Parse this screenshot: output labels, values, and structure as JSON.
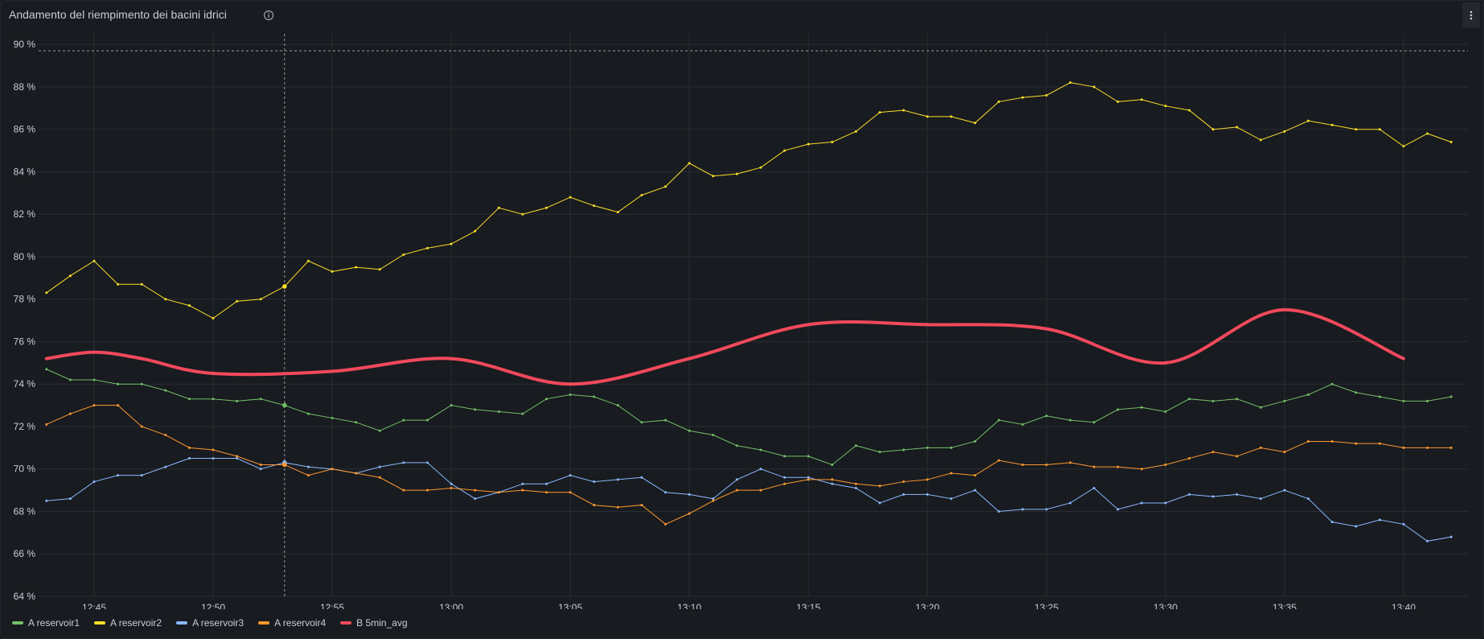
{
  "panel": {
    "title": "Andamento del riempimento dei bacini idrici",
    "info_icon": "info-circle-icon",
    "menu_icon": "kebab-menu-icon"
  },
  "chart_data": {
    "type": "line",
    "grid": true,
    "legend_placement": "bottom-left",
    "ylim": [
      64,
      90.5
    ],
    "y_ticks": [
      "64 %",
      "66 %",
      "68 %",
      "70 %",
      "72 %",
      "74 %",
      "76 %",
      "78 %",
      "80 %",
      "82 %",
      "84 %",
      "86 %",
      "88 %",
      "90 %"
    ],
    "y_tick_values": [
      64,
      66,
      68,
      70,
      72,
      74,
      76,
      78,
      80,
      82,
      84,
      86,
      88,
      90
    ],
    "x_ticks": [
      "12:45",
      "12:50",
      "12:55",
      "13:00",
      "13:05",
      "13:10",
      "13:15",
      "13:20",
      "13:25",
      "13:30",
      "13:35",
      "13:40"
    ],
    "x_start": "12:43",
    "x_step_minutes": 1,
    "threshold_line": {
      "value": 89.7,
      "color": "#9b9ca3"
    },
    "hover_time": "12:53",
    "series": [
      {
        "name": "A reservoir1",
        "color": "#73bf69",
        "values": [
          74.7,
          74.2,
          74.2,
          74.0,
          74.0,
          73.7,
          73.3,
          73.3,
          73.2,
          73.3,
          73.0,
          72.6,
          72.4,
          72.2,
          71.8,
          72.3,
          72.3,
          73.0,
          72.8,
          72.7,
          72.6,
          73.3,
          73.5,
          73.4,
          73.0,
          72.2,
          72.3,
          71.8,
          71.6,
          71.1,
          70.9,
          70.6,
          70.6,
          70.2,
          71.1,
          70.8,
          70.9,
          71.0,
          71.0,
          71.3,
          72.3,
          72.1,
          72.5,
          72.3,
          72.2,
          72.8,
          72.9,
          72.7,
          73.3,
          73.2,
          73.3,
          72.9,
          73.2,
          73.5,
          74.0,
          73.6,
          73.4,
          73.2,
          73.2,
          73.4
        ]
      },
      {
        "name": "A reservoir2",
        "color": "#fade2a",
        "values": [
          78.3,
          79.1,
          79.8,
          78.7,
          78.7,
          78.0,
          77.7,
          77.1,
          77.9,
          78.0,
          78.6,
          79.8,
          79.3,
          79.5,
          79.4,
          80.1,
          80.4,
          80.6,
          81.2,
          82.3,
          82.0,
          82.3,
          82.8,
          82.4,
          82.1,
          82.9,
          83.3,
          84.4,
          83.8,
          83.9,
          84.2,
          85.0,
          85.3,
          85.4,
          85.9,
          86.8,
          86.9,
          86.6,
          86.6,
          86.3,
          87.3,
          87.5,
          87.6,
          88.2,
          88.0,
          87.3,
          87.4,
          87.1,
          86.9,
          86.0,
          86.1,
          85.5,
          85.9,
          86.4,
          86.2,
          86.0,
          86.0,
          85.2,
          85.8,
          85.4
        ]
      },
      {
        "name": "A reservoir3",
        "color": "#8ab8ff",
        "values": [
          68.5,
          68.6,
          69.4,
          69.7,
          69.7,
          70.1,
          70.5,
          70.5,
          70.5,
          70.0,
          70.3,
          70.1,
          70.0,
          69.8,
          70.1,
          70.3,
          70.3,
          69.3,
          68.6,
          68.9,
          69.3,
          69.3,
          69.7,
          69.4,
          69.5,
          69.6,
          68.9,
          68.8,
          68.6,
          69.5,
          70.0,
          69.6,
          69.6,
          69.3,
          69.1,
          68.4,
          68.8,
          68.8,
          68.6,
          69.0,
          68.0,
          68.1,
          68.1,
          68.4,
          69.1,
          68.1,
          68.4,
          68.4,
          68.8,
          68.7,
          68.8,
          68.6,
          69.0,
          68.6,
          67.5,
          67.3,
          67.6,
          67.4,
          66.6,
          66.8
        ]
      },
      {
        "name": "A reservoir4",
        "color": "#ff9830",
        "values": [
          72.1,
          72.6,
          73.0,
          73.0,
          72.0,
          71.6,
          71.0,
          70.9,
          70.6,
          70.2,
          70.2,
          69.7,
          70.0,
          69.8,
          69.6,
          69.0,
          69.0,
          69.1,
          69.0,
          68.9,
          69.0,
          68.9,
          68.9,
          68.3,
          68.2,
          68.3,
          67.4,
          67.9,
          68.5,
          69.0,
          69.0,
          69.3,
          69.5,
          69.5,
          69.3,
          69.2,
          69.4,
          69.5,
          69.8,
          69.7,
          70.4,
          70.2,
          70.2,
          70.3,
          70.1,
          70.1,
          70.0,
          70.2,
          70.5,
          70.8,
          70.6,
          71.0,
          70.8,
          71.3,
          71.3,
          71.2,
          71.2,
          71.0,
          71.0,
          71.0
        ]
      },
      {
        "name": "B 5min_avg",
        "color": "#f2495c",
        "times": [
          "12:43",
          "12:45",
          "12:47",
          "12:50",
          "12:55",
          "13:00",
          "13:05",
          "13:10",
          "13:15",
          "13:20",
          "13:25",
          "13:30",
          "13:35",
          "13:40"
        ],
        "values": [
          75.2,
          75.5,
          75.2,
          74.5,
          74.6,
          75.2,
          74.0,
          75.2,
          76.8,
          76.8,
          76.6,
          75.0,
          77.5,
          75.2
        ]
      }
    ]
  }
}
